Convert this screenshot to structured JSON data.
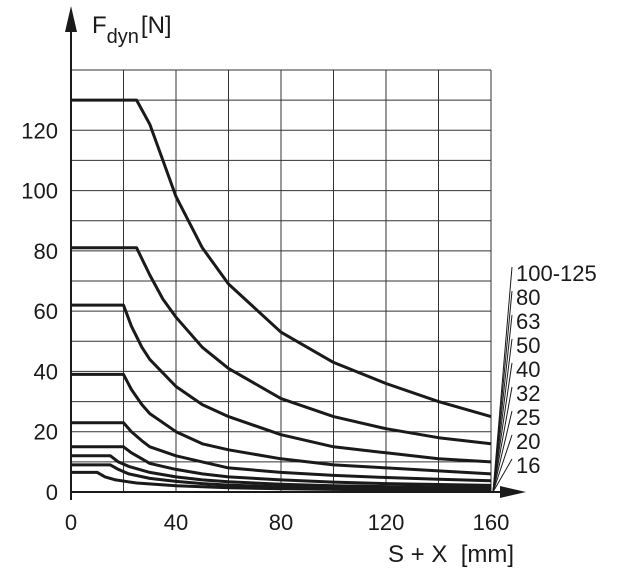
{
  "chart_data": {
    "type": "line",
    "ylabel": "F",
    "ylabel_subscript": "dyn",
    "ylabel_unit": "[N]",
    "xlabel": "S + X  [mm]",
    "xlim": [
      0,
      160
    ],
    "ylim": [
      0,
      140
    ],
    "x_ticks": [
      0,
      40,
      80,
      120,
      160
    ],
    "y_ticks": [
      0,
      20,
      40,
      60,
      80,
      100,
      120
    ],
    "grid": true,
    "grid_x_step": 20,
    "grid_y_step": 10,
    "legend_placement": "right",
    "line_color": "#1a1a1a",
    "series": [
      {
        "name": "100-125",
        "points": [
          [
            0,
            130
          ],
          [
            25,
            130
          ],
          [
            30,
            122
          ],
          [
            35,
            110
          ],
          [
            40,
            98
          ],
          [
            50,
            81
          ],
          [
            60,
            69
          ],
          [
            80,
            53
          ],
          [
            100,
            43
          ],
          [
            120,
            36
          ],
          [
            140,
            30
          ],
          [
            160,
            25
          ]
        ]
      },
      {
        "name": "80",
        "points": [
          [
            0,
            81
          ],
          [
            25,
            81
          ],
          [
            30,
            72
          ],
          [
            35,
            64
          ],
          [
            40,
            58
          ],
          [
            50,
            48
          ],
          [
            60,
            41
          ],
          [
            80,
            31
          ],
          [
            100,
            25
          ],
          [
            120,
            21
          ],
          [
            140,
            18
          ],
          [
            160,
            16
          ]
        ]
      },
      {
        "name": "63",
        "points": [
          [
            0,
            62
          ],
          [
            20,
            62
          ],
          [
            23,
            55
          ],
          [
            27,
            48
          ],
          [
            30,
            44
          ],
          [
            40,
            35
          ],
          [
            50,
            29
          ],
          [
            60,
            25
          ],
          [
            80,
            19
          ],
          [
            100,
            15
          ],
          [
            120,
            13
          ],
          [
            140,
            11
          ],
          [
            160,
            10
          ]
        ]
      },
      {
        "name": "50",
        "points": [
          [
            0,
            39
          ],
          [
            20,
            39
          ],
          [
            23,
            34
          ],
          [
            27,
            29
          ],
          [
            30,
            26
          ],
          [
            40,
            20
          ],
          [
            50,
            16
          ],
          [
            60,
            14
          ],
          [
            80,
            11
          ],
          [
            100,
            9
          ],
          [
            120,
            8
          ],
          [
            140,
            7
          ],
          [
            160,
            6
          ]
        ]
      },
      {
        "name": "40",
        "points": [
          [
            0,
            23
          ],
          [
            20,
            23
          ],
          [
            23,
            20
          ],
          [
            27,
            17
          ],
          [
            30,
            15
          ],
          [
            40,
            12
          ],
          [
            50,
            10
          ],
          [
            60,
            8
          ],
          [
            80,
            6.5
          ],
          [
            100,
            5.5
          ],
          [
            120,
            4.8
          ],
          [
            140,
            4.2
          ],
          [
            160,
            3.7
          ]
        ]
      },
      {
        "name": "32",
        "points": [
          [
            0,
            15
          ],
          [
            20,
            15
          ],
          [
            23,
            13
          ],
          [
            27,
            11
          ],
          [
            30,
            9.5
          ],
          [
            40,
            7.5
          ],
          [
            50,
            6
          ],
          [
            60,
            5
          ],
          [
            80,
            4
          ],
          [
            100,
            3.3
          ],
          [
            120,
            2.8
          ],
          [
            140,
            2.5
          ],
          [
            160,
            2.2
          ]
        ]
      },
      {
        "name": "25",
        "points": [
          [
            0,
            12
          ],
          [
            15,
            12
          ],
          [
            18,
            10
          ],
          [
            22,
            8.5
          ],
          [
            30,
            6.5
          ],
          [
            40,
            5
          ],
          [
            50,
            4
          ],
          [
            60,
            3.4
          ],
          [
            80,
            2.6
          ],
          [
            100,
            2.1
          ],
          [
            120,
            1.8
          ],
          [
            140,
            1.6
          ],
          [
            160,
            1.4
          ]
        ]
      },
      {
        "name": "20",
        "points": [
          [
            0,
            9
          ],
          [
            15,
            9
          ],
          [
            18,
            7.5
          ],
          [
            22,
            6
          ],
          [
            30,
            4.5
          ],
          [
            40,
            3.5
          ],
          [
            50,
            2.8
          ],
          [
            60,
            2.3
          ],
          [
            80,
            1.7
          ],
          [
            100,
            1.4
          ],
          [
            120,
            1.2
          ],
          [
            140,
            1
          ],
          [
            160,
            0.9
          ]
        ]
      },
      {
        "name": "16",
        "points": [
          [
            0,
            6.5
          ],
          [
            10,
            6.5
          ],
          [
            13,
            5
          ],
          [
            17,
            4
          ],
          [
            25,
            3
          ],
          [
            40,
            2.1
          ],
          [
            60,
            1.4
          ],
          [
            80,
            1.05
          ],
          [
            100,
            0.85
          ],
          [
            120,
            0.7
          ],
          [
            140,
            0.6
          ],
          [
            160,
            0.5
          ]
        ]
      }
    ]
  }
}
